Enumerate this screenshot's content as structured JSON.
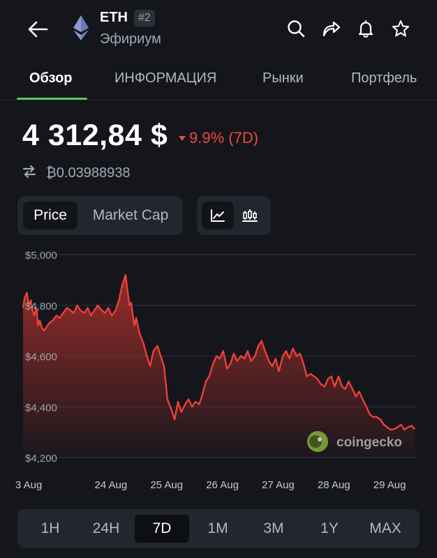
{
  "header": {
    "symbol": "ETH",
    "rank": "#2",
    "name": "Эфириум",
    "icons": [
      "back-arrow-icon",
      "ethereum-logo",
      "search-icon",
      "share-icon",
      "bell-icon",
      "star-icon"
    ]
  },
  "tabs": [
    {
      "label": "Обзор",
      "active": true
    },
    {
      "label": "ИНФОРМАЦИЯ",
      "active": false
    },
    {
      "label": "Рынки",
      "active": false
    },
    {
      "label": "Портфель",
      "active": false
    }
  ],
  "price": {
    "value": "4 312,84 $",
    "change": "9.9% (7D)",
    "btc_value": "₿0.03988938"
  },
  "metric_toggle": {
    "options": [
      "Price",
      "Market Cap"
    ],
    "selected": "Price"
  },
  "chart_type_toggle": {
    "options": [
      "line-chart-icon",
      "candlestick-icon"
    ],
    "selected": "line-chart-icon"
  },
  "colors": {
    "accent": "#59c75e",
    "negative": "#f0493e",
    "background": "#14161c"
  },
  "chart_data": {
    "type": "area",
    "ylim": [
      4200,
      5000
    ],
    "yticks": [
      5000,
      4800,
      4600,
      4400,
      4200
    ],
    "ytick_labels": [
      "$5,000",
      "$4,800",
      "$4,600",
      "$4,400",
      "$4,200"
    ],
    "xlim": [
      0,
      7.05
    ],
    "xticks": [
      0,
      1,
      2,
      3,
      4,
      5,
      6
    ],
    "xtick_labels": [
      "3 Aug",
      "24 Aug",
      "25 Aug",
      "26 Aug",
      "27 Aug",
      "28 Aug",
      "29 Aug"
    ],
    "grid": "horizontal",
    "watermark": "coingecko",
    "x": [
      0.0,
      0.03,
      0.07,
      0.1,
      0.14,
      0.17,
      0.2,
      0.24,
      0.27,
      0.3,
      0.34,
      0.37,
      0.41,
      0.47,
      0.53,
      0.6,
      0.66,
      0.72,
      0.79,
      0.85,
      0.91,
      0.97,
      1.03,
      1.1,
      1.16,
      1.22,
      1.28,
      1.34,
      1.41,
      1.47,
      1.53,
      1.59,
      1.66,
      1.72,
      1.78,
      1.84,
      1.88,
      1.91,
      1.94,
      1.97,
      2.0,
      2.03,
      2.09,
      2.16,
      2.22,
      2.28,
      2.34,
      2.41,
      2.47,
      2.53,
      2.59,
      2.66,
      2.72,
      2.78,
      2.84,
      2.91,
      2.97,
      3.03,
      3.09,
      3.16,
      3.22,
      3.28,
      3.34,
      3.41,
      3.47,
      3.53,
      3.59,
      3.66,
      3.72,
      3.78,
      3.84,
      3.91,
      3.97,
      4.03,
      4.09,
      4.16,
      4.22,
      4.28,
      4.34,
      4.41,
      4.47,
      4.53,
      4.59,
      4.66,
      4.72,
      4.78,
      4.84,
      4.91,
      4.97,
      5.03,
      5.09,
      5.16,
      5.22,
      5.28,
      5.34,
      5.41,
      5.47,
      5.53,
      5.59,
      5.66,
      5.72,
      5.78,
      5.84,
      5.91,
      5.97,
      6.03,
      6.09,
      6.16,
      6.22,
      6.28,
      6.34,
      6.41,
      6.47,
      6.53,
      6.59,
      6.66,
      6.72,
      6.78,
      6.84,
      6.91,
      6.97,
      7.0,
      7.03
    ],
    "values": [
      4790,
      4830,
      4850,
      4800,
      4820,
      4780,
      4760,
      4790,
      4720,
      4740,
      4710,
      4700,
      4710,
      4730,
      4740,
      4760,
      4750,
      4770,
      4790,
      4780,
      4770,
      4800,
      4780,
      4770,
      4790,
      4760,
      4780,
      4800,
      4780,
      4770,
      4790,
      4760,
      4780,
      4820,
      4880,
      4920,
      4850,
      4800,
      4810,
      4760,
      4720,
      4750,
      4690,
      4650,
      4600,
      4560,
      4620,
      4640,
      4600,
      4560,
      4430,
      4390,
      4350,
      4420,
      4380,
      4410,
      4430,
      4400,
      4420,
      4410,
      4450,
      4500,
      4520,
      4570,
      4600,
      4590,
      4620,
      4550,
      4570,
      4610,
      4580,
      4600,
      4590,
      4620,
      4580,
      4600,
      4640,
      4660,
      4620,
      4580,
      4560,
      4590,
      4540,
      4600,
      4620,
      4590,
      4630,
      4600,
      4610,
      4570,
      4520,
      4530,
      4520,
      4510,
      4490,
      4480,
      4510,
      4520,
      4480,
      4520,
      4480,
      4470,
      4500,
      4470,
      4440,
      4460,
      4430,
      4400,
      4370,
      4360,
      4360,
      4350,
      4330,
      4320,
      4310,
      4312,
      4320,
      4330,
      4310,
      4320,
      4325,
      4318,
      4313
    ]
  },
  "range_tabs": {
    "options": [
      "1H",
      "24H",
      "7D",
      "1M",
      "3M",
      "1Y",
      "MAX"
    ],
    "selected": "7D"
  }
}
